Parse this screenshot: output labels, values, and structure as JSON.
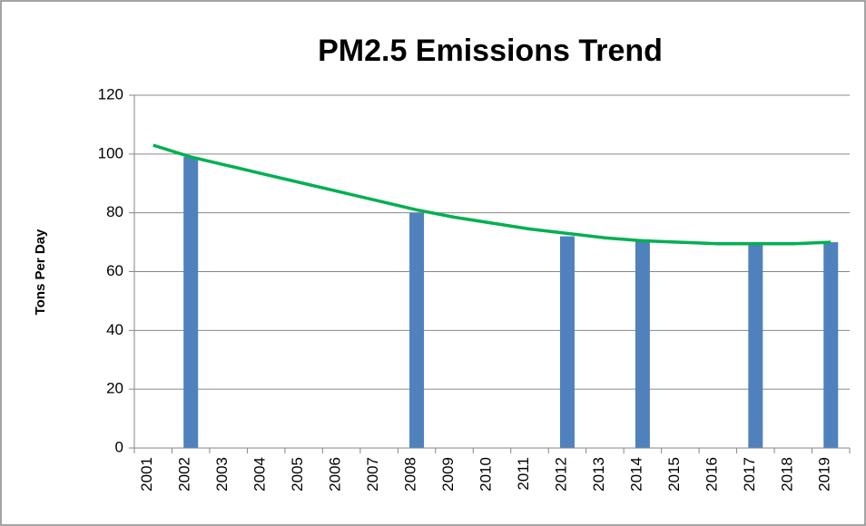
{
  "chart_data": {
    "type": "bar",
    "title": "PM2.5 Emissions Trend",
    "y_label": "Tons Per Day",
    "categories": [
      "2001",
      "2002",
      "2003",
      "2004",
      "2005",
      "2006",
      "2007",
      "2008",
      "2009",
      "2010",
      "2011",
      "2012",
      "2013",
      "2014",
      "2015",
      "2016",
      "2017",
      "2018",
      "2019"
    ],
    "series": [
      {
        "type": "bar",
        "color": "#4f81bd",
        "values": [
          null,
          99,
          null,
          null,
          null,
          null,
          null,
          80,
          null,
          null,
          null,
          72,
          null,
          71,
          null,
          null,
          70,
          null,
          70
        ]
      },
      {
        "type": "line",
        "color": "#00b050",
        "values": [
          103,
          99,
          96,
          93,
          90,
          87,
          84,
          81,
          78.5,
          76.5,
          74.5,
          73,
          71.5,
          70.5,
          70,
          69.5,
          69.5,
          69.5,
          70
        ]
      }
    ],
    "ylim": [
      0,
      120
    ],
    "yticks": [
      0,
      20,
      40,
      60,
      80,
      100,
      120
    ],
    "grid": true
  }
}
